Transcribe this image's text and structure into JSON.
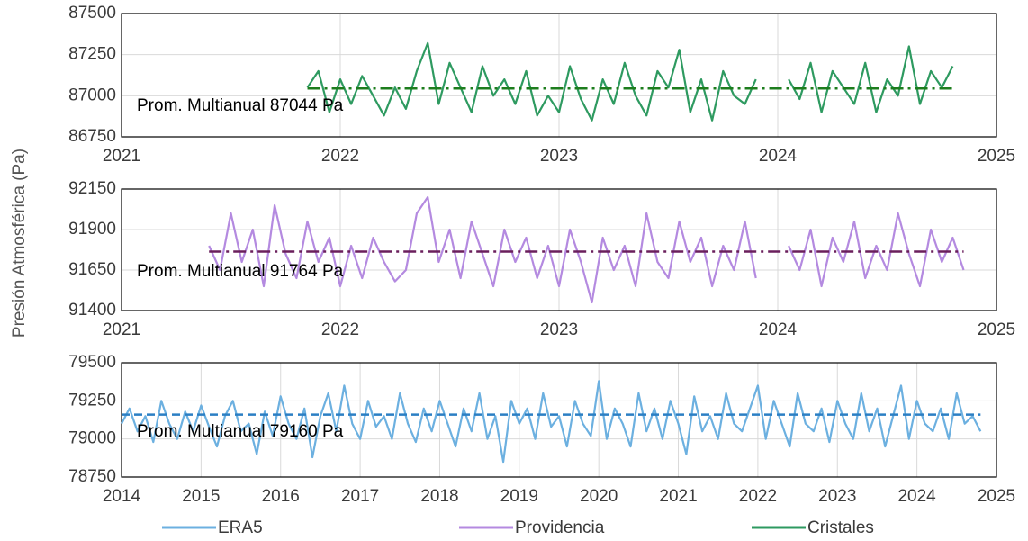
{
  "chart_data": [
    {
      "type": "line",
      "annotation": "Prom. Multianual 87044 Pa",
      "mean": 87044,
      "mean_color": "#1d7d1d",
      "x": [
        2021.85,
        2021.9,
        2021.95,
        2022,
        2022.05,
        2022.1,
        2022.15,
        2022.2,
        2022.25,
        2022.3,
        2022.35,
        2022.4,
        2022.45,
        2022.5,
        2022.55,
        2022.6,
        2022.65,
        2022.7,
        2022.75,
        2022.8,
        2022.85,
        2022.9,
        2022.95,
        2023,
        2023.05,
        2023.1,
        2023.15,
        2023.2,
        2023.25,
        2023.3,
        2023.35,
        2023.4,
        2023.45,
        2023.5,
        2023.55,
        2023.6,
        2023.65,
        2023.7,
        2023.75,
        2023.8,
        2023.85,
        2023.9,
        2023.95,
        2024,
        2024.05,
        2024.1,
        2024.15,
        2024.2,
        2024.25,
        2024.3,
        2024.35,
        2024.4,
        2024.45,
        2024.5,
        2024.55,
        2024.6,
        2024.65,
        2024.7,
        2024.75,
        2024.8
      ],
      "series": [
        {
          "name": "Cristales",
          "color": "#2e9a60",
          "values": [
            87050,
            87150,
            86900,
            87100,
            86950,
            87120,
            87000,
            86880,
            87050,
            86920,
            87150,
            87320,
            86950,
            87200,
            87050,
            86900,
            87180,
            87000,
            87100,
            86950,
            87150,
            86880,
            87000,
            86900,
            87180,
            86980,
            86850,
            87100,
            86950,
            87200,
            87000,
            86880,
            87150,
            87050,
            87280,
            86900,
            87100,
            86850,
            87150,
            87000,
            86950,
            87100,
            null,
            null,
            87100,
            86980,
            87200,
            86900,
            87150,
            87050,
            86950,
            87200,
            86900,
            87100,
            87000,
            87300,
            86950,
            87150,
            87050,
            87180
          ]
        }
      ],
      "xlim": [
        2021,
        2025
      ],
      "xticks": [
        2021,
        2022,
        2023,
        2024,
        2025
      ],
      "ylim": [
        86750,
        87500
      ],
      "yticks": [
        86750,
        87000,
        87250,
        87500
      ]
    },
    {
      "type": "line",
      "annotation": "Prom. Multianual 91764 Pa",
      "mean": 91764,
      "mean_color": "#6a1f5c",
      "y_label": "Presión Atmosférica (Pa)",
      "x": [
        2021.4,
        2021.45,
        2021.5,
        2021.55,
        2021.6,
        2021.65,
        2021.7,
        2021.75,
        2021.8,
        2021.85,
        2021.9,
        2021.95,
        2022,
        2022.05,
        2022.1,
        2022.15,
        2022.2,
        2022.25,
        2022.3,
        2022.35,
        2022.4,
        2022.45,
        2022.5,
        2022.55,
        2022.6,
        2022.65,
        2022.7,
        2022.75,
        2022.8,
        2022.85,
        2022.9,
        2022.95,
        2023,
        2023.05,
        2023.1,
        2023.15,
        2023.2,
        2023.25,
        2023.3,
        2023.35,
        2023.4,
        2023.45,
        2023.5,
        2023.55,
        2023.6,
        2023.65,
        2023.7,
        2023.75,
        2023.8,
        2023.85,
        2023.9,
        2023.95,
        2024,
        2024.05,
        2024.1,
        2024.15,
        2024.2,
        2024.25,
        2024.3,
        2024.35,
        2024.4,
        2024.45,
        2024.5,
        2024.55,
        2024.6,
        2024.65,
        2024.7,
        2024.75,
        2024.8,
        2024.85
      ],
      "series": [
        {
          "name": "Providencia",
          "color": "#b48ae0",
          "values": [
            91800,
            91650,
            92000,
            91700,
            91900,
            91550,
            92050,
            91750,
            91600,
            91950,
            91700,
            91850,
            91550,
            91800,
            91600,
            91850,
            91700,
            91580,
            91650,
            92000,
            92100,
            91700,
            91900,
            91600,
            91950,
            91750,
            91550,
            91900,
            91700,
            91850,
            91600,
            91800,
            91550,
            91900,
            91700,
            91450,
            91850,
            91650,
            91800,
            91550,
            92000,
            91700,
            91600,
            91950,
            91700,
            91850,
            91550,
            91800,
            91650,
            91950,
            91600,
            null,
            null,
            91800,
            91650,
            91900,
            91550,
            91850,
            91700,
            91950,
            91600,
            91800,
            91650,
            92000,
            91750,
            91550,
            91900,
            91700,
            91850,
            91650
          ]
        }
      ],
      "xlim": [
        2021,
        2025
      ],
      "xticks": [
        2021,
        2022,
        2023,
        2024,
        2025
      ],
      "ylim": [
        91400,
        92150
      ],
      "yticks": [
        91400,
        91650,
        91900,
        92150
      ]
    },
    {
      "type": "line",
      "annotation": "Prom. Multianual 79160 Pa",
      "mean": 79160,
      "mean_color": "#2b7fc4",
      "x": [
        2014,
        2014.1,
        2014.2,
        2014.3,
        2014.4,
        2014.5,
        2014.6,
        2014.7,
        2014.8,
        2014.9,
        2015,
        2015.1,
        2015.2,
        2015.3,
        2015.4,
        2015.5,
        2015.6,
        2015.7,
        2015.8,
        2015.9,
        2016,
        2016.1,
        2016.2,
        2016.3,
        2016.4,
        2016.5,
        2016.6,
        2016.7,
        2016.8,
        2016.9,
        2017,
        2017.1,
        2017.2,
        2017.3,
        2017.4,
        2017.5,
        2017.6,
        2017.7,
        2017.8,
        2017.9,
        2018,
        2018.1,
        2018.2,
        2018.3,
        2018.4,
        2018.5,
        2018.6,
        2018.7,
        2018.8,
        2018.9,
        2019,
        2019.1,
        2019.2,
        2019.3,
        2019.4,
        2019.5,
        2019.6,
        2019.7,
        2019.8,
        2019.9,
        2020,
        2020.1,
        2020.2,
        2020.3,
        2020.4,
        2020.5,
        2020.6,
        2020.7,
        2020.8,
        2020.9,
        2021,
        2021.1,
        2021.2,
        2021.3,
        2021.4,
        2021.5,
        2021.6,
        2021.7,
        2021.8,
        2021.9,
        2022,
        2022.1,
        2022.2,
        2022.3,
        2022.4,
        2022.5,
        2022.6,
        2022.7,
        2022.8,
        2022.9,
        2023,
        2023.1,
        2023.2,
        2023.3,
        2023.4,
        2023.5,
        2023.6,
        2023.7,
        2023.8,
        2023.9,
        2024,
        2024.1,
        2024.2,
        2024.3,
        2024.4,
        2024.5,
        2024.6,
        2024.7,
        2024.8
      ],
      "series": [
        {
          "name": "ERA5",
          "color": "#6cb0e0",
          "values": [
            79100,
            79200,
            79050,
            79150,
            78980,
            79250,
            79100,
            79000,
            79180,
            79050,
            79220,
            79080,
            78950,
            79150,
            79250,
            79050,
            79100,
            78900,
            79180,
            79020,
            79280,
            79100,
            79000,
            79200,
            78880,
            79150,
            79300,
            79050,
            79350,
            79100,
            79000,
            79250,
            79080,
            79150,
            79000,
            79300,
            79100,
            78980,
            79200,
            79050,
            79250,
            79100,
            78950,
            79200,
            79050,
            79300,
            79000,
            79150,
            78850,
            79250,
            79100,
            79200,
            79000,
            79300,
            79080,
            79150,
            78950,
            79250,
            79100,
            79020,
            79380,
            79000,
            79200,
            79100,
            78950,
            79300,
            79050,
            79200,
            79000,
            79250,
            79100,
            78900,
            79280,
            79050,
            79150,
            79000,
            79300,
            79100,
            79050,
            79200,
            79350,
            79000,
            79250,
            79100,
            78950,
            79300,
            79100,
            79050,
            79200,
            78980,
            79250,
            79100,
            79000,
            79300,
            79050,
            79200,
            78950,
            79150,
            79350,
            79000,
            79250,
            79100,
            79050,
            79200,
            79000,
            79300,
            79100,
            79150,
            79050
          ]
        }
      ],
      "xlim": [
        2014,
        2025
      ],
      "xticks": [
        2014,
        2015,
        2016,
        2017,
        2018,
        2019,
        2020,
        2021,
        2022,
        2023,
        2024,
        2025
      ],
      "ylim": [
        78750,
        79500
      ],
      "yticks": [
        78750,
        79000,
        79250,
        79500
      ]
    }
  ]
}
